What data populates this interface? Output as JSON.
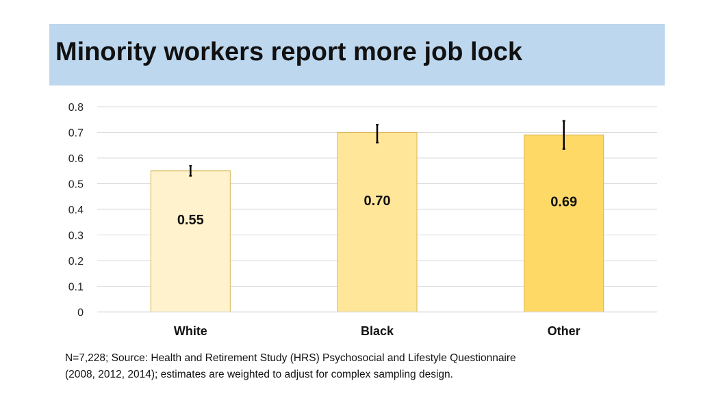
{
  "header": {
    "title": "Minority workers report more job lock"
  },
  "chart_data": {
    "type": "bar",
    "categories": [
      "White",
      "Black",
      "Other"
    ],
    "values": [
      0.55,
      0.7,
      0.69
    ],
    "data_labels": [
      "0.55",
      "0.70",
      "0.69"
    ],
    "error_bars": [
      {
        "low": 0.53,
        "high": 0.57
      },
      {
        "low": 0.66,
        "high": 0.73
      },
      {
        "low": 0.635,
        "high": 0.745
      }
    ],
    "bar_colors": [
      "#fff2cc",
      "#ffe699",
      "#ffd966"
    ],
    "bar_border_color": "#d6b656",
    "ylim": [
      0,
      0.8
    ],
    "yticks": [
      "0",
      "0.1",
      "0.2",
      "0.3",
      "0.4",
      "0.5",
      "0.6",
      "0.7",
      "0.8"
    ],
    "grid": true,
    "title": "Minority workers report more job lock",
    "xlabel": "",
    "ylabel": ""
  },
  "footnote": {
    "line1": "N=7,228; Source: Health and Retirement Study (HRS) Psychosocial and Lifestyle Questionnaire",
    "line2": "(2008, 2012, 2014); estimates are weighted to adjust for complex sampling design."
  },
  "colors": {
    "banner": "#bdd7ee",
    "gridline": "#d9d9d9",
    "error_bar": "#000000"
  }
}
